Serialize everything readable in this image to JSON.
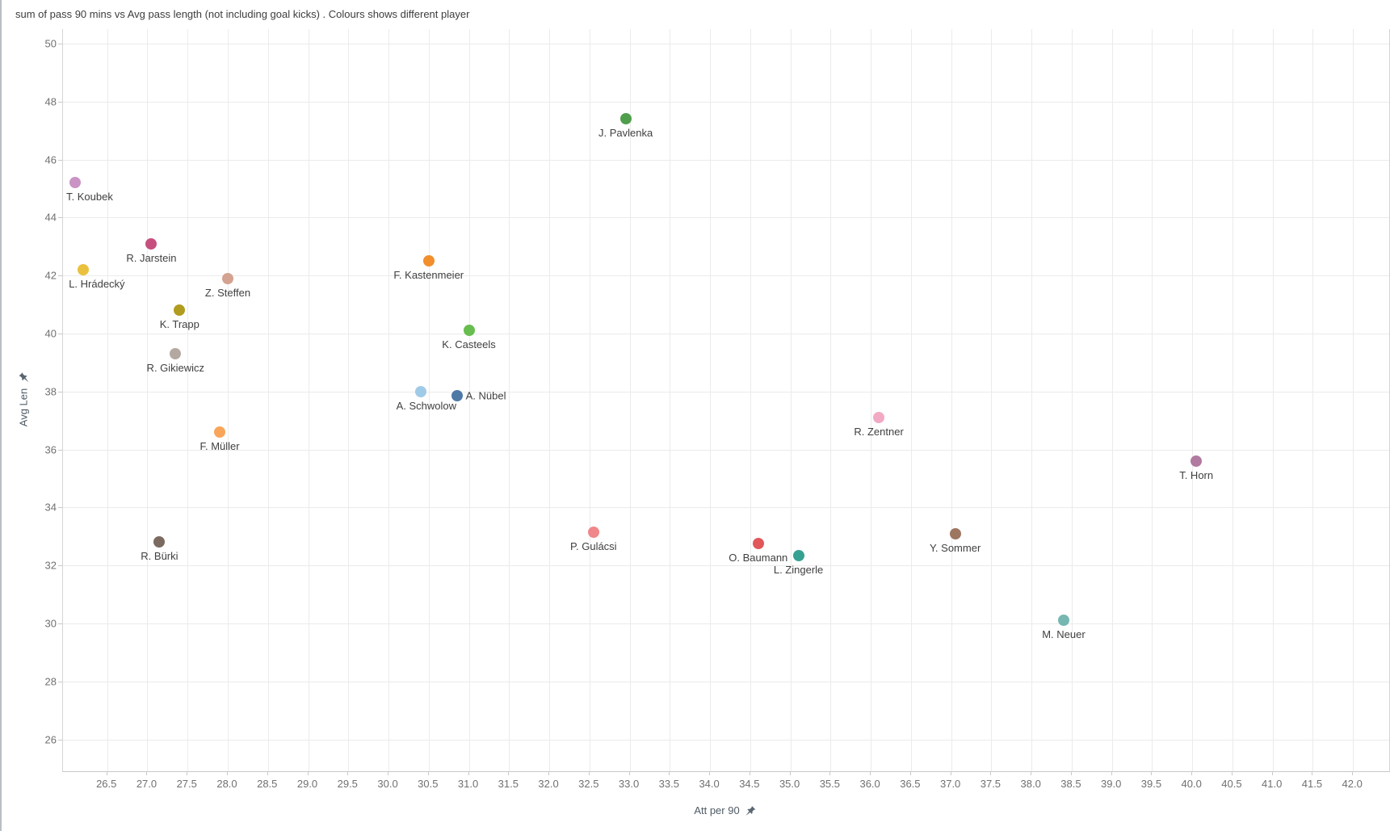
{
  "chart_data": {
    "type": "scatter",
    "title": "sum of pass 90 mins vs Avg pass length (not including goal kicks) .  Colours shows different player",
    "xlabel": "Att per 90",
    "ylabel": "Avg Len",
    "x_axis_pinned": true,
    "y_axis_pinned": true,
    "grid": true,
    "legend_position": "none",
    "xlim": [
      25.95,
      42.45
    ],
    "ylim": [
      24.9,
      50.5
    ],
    "x_ticks": [
      "26.5",
      "27.0",
      "27.5",
      "28.0",
      "28.5",
      "29.0",
      "29.5",
      "30.0",
      "30.5",
      "31.0",
      "31.5",
      "32.0",
      "32.5",
      "33.0",
      "33.5",
      "34.0",
      "34.5",
      "35.0",
      "35.5",
      "36.0",
      "36.5",
      "37.0",
      "37.5",
      "38.0",
      "38.5",
      "39.0",
      "39.5",
      "40.0",
      "40.5",
      "41.0",
      "41.5",
      "42.0"
    ],
    "y_ticks": [
      26,
      28,
      30,
      32,
      34,
      36,
      38,
      40,
      42,
      44,
      46,
      48,
      50
    ],
    "colors": {
      "gridline": "#ebebeb",
      "axis_line": "#cccccc",
      "tick_label": "#707070",
      "point_label": "#3f3f3f",
      "title": "#3d3d3d",
      "pin_icon": "#5a6772"
    },
    "points": [
      {
        "name": "T. Koubek",
        "x": 26.1,
        "y": 45.2,
        "color": "#c993c3",
        "label_pos": "below",
        "label_dx": 18
      },
      {
        "name": "L. Hrádecký",
        "x": 26.2,
        "y": 42.2,
        "color": "#eac13e",
        "label_pos": "below",
        "label_dx": 17
      },
      {
        "name": "R. Jarstein",
        "x": 27.05,
        "y": 43.1,
        "color": "#c74f7e",
        "label_pos": "below",
        "label_dx": 0
      },
      {
        "name": "R. Bürki",
        "x": 27.15,
        "y": 32.8,
        "color": "#7a6a60",
        "label_pos": "below",
        "label_dx": 0
      },
      {
        "name": "R. Gikiewicz",
        "x": 27.35,
        "y": 39.3,
        "color": "#b4a9a1",
        "label_pos": "below",
        "label_dx": 0
      },
      {
        "name": "K. Trapp",
        "x": 27.4,
        "y": 40.8,
        "color": "#b09c1e",
        "label_pos": "below",
        "label_dx": 0
      },
      {
        "name": "F. Müller",
        "x": 27.9,
        "y": 36.6,
        "color": "#f9a65a",
        "label_pos": "below",
        "label_dx": 0
      },
      {
        "name": "Z. Steffen",
        "x": 28.0,
        "y": 41.9,
        "color": "#d4a291",
        "label_pos": "below",
        "label_dx": 0
      },
      {
        "name": "A. Schwolow",
        "x": 30.4,
        "y": 38.0,
        "color": "#a0cbe8",
        "label_pos": "below",
        "label_dx": 7
      },
      {
        "name": "F. Kastenmeier",
        "x": 30.5,
        "y": 42.5,
        "color": "#f28e2b",
        "label_pos": "below",
        "label_dx": 0
      },
      {
        "name": "A. Nübel",
        "x": 30.85,
        "y": 37.85,
        "color": "#4e79a7",
        "label_pos": "right",
        "label_dx": 0
      },
      {
        "name": "K. Casteels",
        "x": 31.0,
        "y": 40.1,
        "color": "#67bd4e",
        "label_pos": "below",
        "label_dx": 0
      },
      {
        "name": "P. Gulácsi",
        "x": 32.55,
        "y": 33.15,
        "color": "#f0878a",
        "label_pos": "below",
        "label_dx": 0
      },
      {
        "name": "J. Pavlenka",
        "x": 32.95,
        "y": 47.4,
        "color": "#4f9e4c",
        "label_pos": "below",
        "label_dx": 0
      },
      {
        "name": "O. Baumann",
        "x": 34.6,
        "y": 32.75,
        "color": "#e15759",
        "label_pos": "below",
        "label_dx": 0
      },
      {
        "name": "L. Zingerle",
        "x": 35.1,
        "y": 32.35,
        "color": "#35a193",
        "label_pos": "below",
        "label_dx": 0
      },
      {
        "name": "R. Zentner",
        "x": 36.1,
        "y": 37.1,
        "color": "#f2a9c4",
        "label_pos": "below",
        "label_dx": 0
      },
      {
        "name": "Y. Sommer",
        "x": 37.05,
        "y": 33.1,
        "color": "#9d7660",
        "label_pos": "below",
        "label_dx": 0
      },
      {
        "name": "M. Neuer",
        "x": 38.4,
        "y": 30.1,
        "color": "#76b7b2",
        "label_pos": "below",
        "label_dx": 0
      },
      {
        "name": "T. Horn",
        "x": 40.05,
        "y": 35.6,
        "color": "#b07aa1",
        "label_pos": "below",
        "label_dx": 0
      }
    ]
  }
}
